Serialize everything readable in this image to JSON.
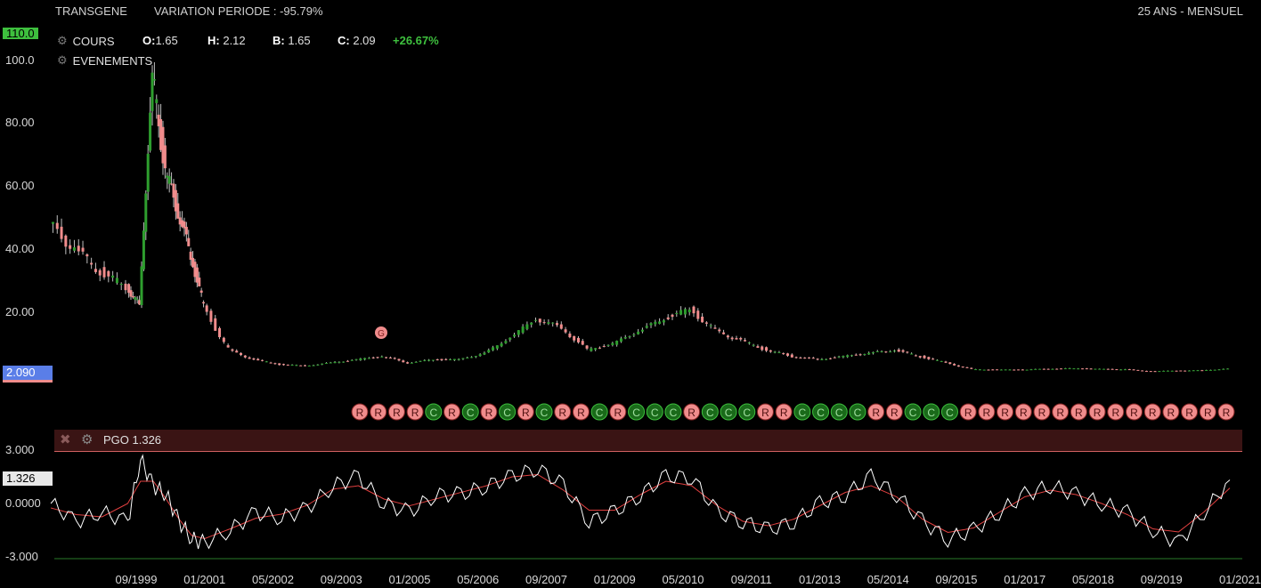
{
  "header": {
    "ticker": "TRANSGENE",
    "variation": "VARIATION PERIODE : -95.79%",
    "period": "25 ANS - MENSUEL"
  },
  "legend": {
    "cours_label": "COURS",
    "events_label": "EVENEMENTS",
    "o_label": "O:",
    "o_value": "1.65",
    "h_label": "H:",
    "h_value": "2.12",
    "b_label": "B:",
    "b_value": "1.65",
    "c_label": "C:",
    "c_value": "2.09",
    "change": "+26.67%",
    "event_marker": "G"
  },
  "price_axis": {
    "top_tag": "110.0",
    "ticks": [
      "100.0",
      "80.00",
      "60.00",
      "40.00",
      "20.00"
    ],
    "current_tag": "2.090"
  },
  "pgo": {
    "label": "PGO 1.326",
    "current_tag": "1.326",
    "ticks": [
      "3.000",
      "0.0000",
      "-3.000"
    ]
  },
  "colors": {
    "up": "#2e9e2e",
    "down": "#f08c8c",
    "pgo_line": "#ffffff",
    "pgo_signal": "#e04040",
    "accent_green": "#3ec03e"
  },
  "x_axis_labels": [
    "09/1999",
    "01/2001",
    "05/2002",
    "09/2003",
    "01/2005",
    "05/2006",
    "09/2007",
    "01/2009",
    "05/2010",
    "09/2011",
    "01/2013",
    "05/2014",
    "09/2015",
    "01/2017",
    "05/2018",
    "09/2019",
    "01/2021"
  ],
  "chart_data": {
    "type": "line",
    "x": [
      "1998-01",
      "1998-07",
      "1999-01",
      "1999-07",
      "1999-10",
      "2000-01",
      "2000-04",
      "2000-07",
      "2000-10",
      "2001-01",
      "2001-07",
      "2002-01",
      "2002-07",
      "2003-01",
      "2003-07",
      "2004-01",
      "2004-07",
      "2005-01",
      "2005-07",
      "2006-01",
      "2006-07",
      "2007-01",
      "2007-07",
      "2008-01",
      "2008-07",
      "2009-01",
      "2009-07",
      "2010-01",
      "2010-07",
      "2011-01",
      "2011-07",
      "2012-01",
      "2012-07",
      "2013-01",
      "2013-07",
      "2014-01",
      "2014-07",
      "2015-01",
      "2015-07",
      "2016-01",
      "2016-07",
      "2017-01",
      "2017-07",
      "2018-01",
      "2018-07",
      "2019-01",
      "2019-07",
      "2020-01",
      "2020-07",
      "2021-01"
    ],
    "series": [
      {
        "values": [
          48,
          40,
          33,
          28,
          22,
          95,
          65,
          52,
          38,
          22,
          8,
          5,
          3.5,
          3,
          4,
          5,
          6,
          4,
          5,
          5,
          7,
          12,
          18,
          15,
          8,
          10,
          14,
          18,
          21,
          14,
          11,
          8,
          6,
          5,
          6,
          7,
          8,
          6,
          4,
          1.9,
          1.8,
          1.8,
          2.1,
          2.2,
          2.0,
          1.9,
          1.3,
          1.5,
          1.6,
          2.09
        ]
      },
      {
        "values": [
          0,
          -1,
          -0.5,
          -1,
          2.5,
          1,
          0.5,
          -1,
          -2,
          -2.2,
          -1.5,
          -0.5,
          -0.8,
          -0.3,
          1,
          1.5,
          0,
          -0.5,
          0.5,
          0.5,
          1,
          1.5,
          2,
          1,
          -1,
          -0.5,
          0.5,
          1.5,
          1.5,
          -0.5,
          -1,
          -1.5,
          -1,
          0,
          0.5,
          1.5,
          0.5,
          -1,
          -2,
          -1.5,
          -0.5,
          0.5,
          1,
          0.5,
          0,
          -0.5,
          -1.5,
          -2.2,
          -0.5,
          1.326
        ]
      }
    ],
    "ylim": [
      0,
      110
    ],
    "y2lim": [
      -3,
      3
    ]
  },
  "event_markers": [
    "R",
    "R",
    "R",
    "R",
    "C",
    "R",
    "C",
    "R",
    "C",
    "R",
    "C",
    "R",
    "R",
    "C",
    "R",
    "C",
    "C",
    "C",
    "R",
    "C",
    "C",
    "C",
    "R",
    "R",
    "C",
    "C",
    "C",
    "C",
    "R",
    "R",
    "C",
    "C",
    "C",
    "R",
    "R",
    "R",
    "R",
    "R",
    "R",
    "R",
    "R",
    "R",
    "R",
    "R",
    "R",
    "R",
    "R",
    "R"
  ]
}
